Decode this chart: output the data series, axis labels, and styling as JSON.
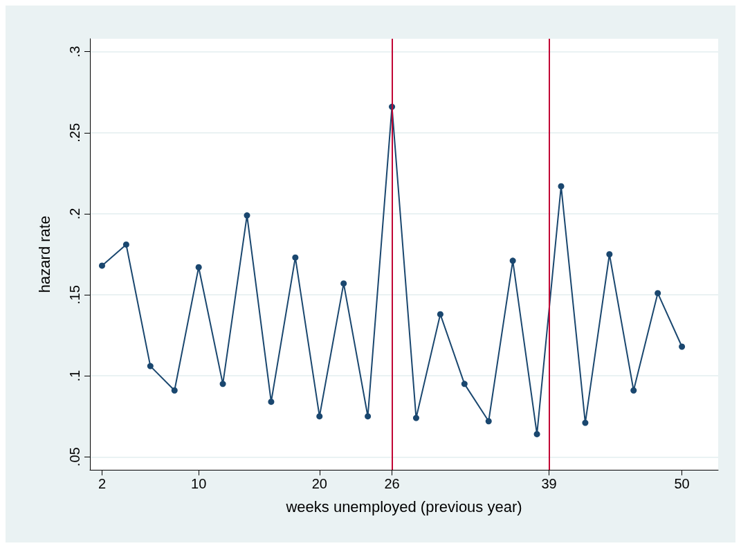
{
  "chart_data": {
    "type": "line",
    "xlabel": "weeks unemployed (previous year)",
    "ylabel": "hazard rate",
    "x": [
      2,
      4,
      6,
      8,
      10,
      12,
      14,
      16,
      18,
      20,
      22,
      24,
      26,
      28,
      30,
      32,
      34,
      36,
      38,
      40,
      42,
      44,
      46,
      48,
      50
    ],
    "series": [
      {
        "color": "#1a476f",
        "values": [
          0.168,
          0.181,
          0.106,
          0.091,
          0.167,
          0.095,
          0.199,
          0.084,
          0.173,
          0.075,
          0.157,
          0.075,
          0.266,
          0.074,
          0.138,
          0.095,
          0.072,
          0.171,
          0.064,
          0.217,
          0.071,
          0.175,
          0.091,
          0.151,
          0.118
        ]
      }
    ],
    "xlim": [
      1,
      53
    ],
    "xticks": [
      2,
      10,
      20,
      26,
      39,
      50
    ],
    "ylim": [
      0.042,
      0.308
    ],
    "yticks": [
      {
        "value": 0.05,
        "label": ".05"
      },
      {
        "value": 0.1,
        "label": ".1"
      },
      {
        "value": 0.15,
        "label": ".15"
      },
      {
        "value": 0.2,
        "label": ".2"
      },
      {
        "value": 0.25,
        "label": ".25"
      },
      {
        "value": 0.3,
        "label": ".3"
      }
    ],
    "ref_lines": [
      {
        "axis": "x",
        "value": 26,
        "color": "#c10534"
      },
      {
        "axis": "x",
        "value": 39,
        "color": "#c10534"
      }
    ],
    "grid": "y",
    "marker": "circle",
    "line_style": "solid"
  }
}
